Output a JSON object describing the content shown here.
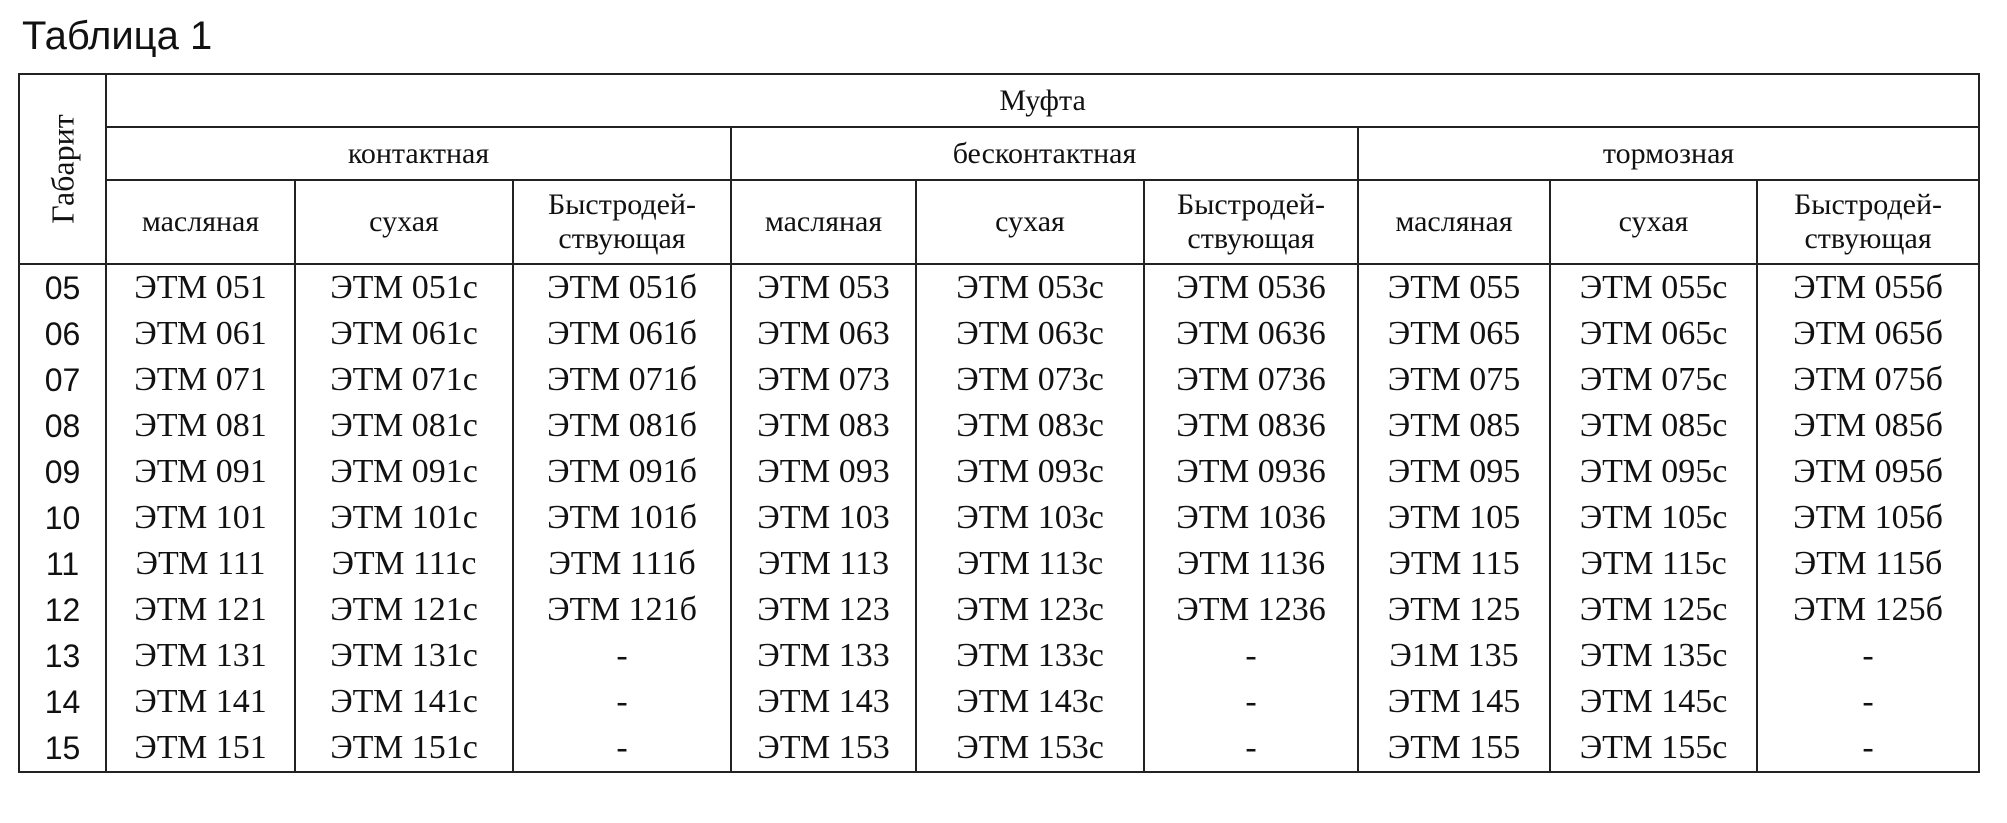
{
  "title": "Таблица 1",
  "table": {
    "row_header": "Габарит",
    "top_header": "Муфта",
    "groups": [
      "контактная",
      "бесконтактная",
      "тормозная"
    ],
    "subheaders": [
      "масляная",
      "сухая",
      "Быстродей-ствующая",
      "масляная",
      "сухая",
      "Быстродей-ствующая",
      "масляная",
      "сухая",
      "Быстродей-ствующая"
    ],
    "rows": [
      {
        "gabarit": "05",
        "cells": [
          "ЭТМ 051",
          "ЭТМ 051с",
          "ЭТМ 051б",
          "ЭТМ 053",
          "ЭТМ 053с",
          "ЭТМ 0536",
          "ЭТМ 055",
          "ЭТМ 055с",
          "ЭТМ 055б"
        ]
      },
      {
        "gabarit": "06",
        "cells": [
          "ЭТМ 061",
          "ЭТМ 061с",
          "ЭТМ 061б",
          "ЭТМ 063",
          "ЭТМ 063с",
          "ЭТМ 0636",
          "ЭТМ 065",
          "ЭТМ 065с",
          "ЭТМ 065б"
        ]
      },
      {
        "gabarit": "07",
        "cells": [
          "ЭТМ 071",
          "ЭТМ 071с",
          "ЭТМ 071б",
          "ЭТМ 073",
          "ЭТМ 073с",
          "ЭТМ 0736",
          "ЭТМ 075",
          "ЭТМ 075с",
          "ЭТМ 075б"
        ]
      },
      {
        "gabarit": "08",
        "cells": [
          "ЭТМ 081",
          "ЭТМ 081с",
          "ЭТМ 081б",
          "ЭТМ 083",
          "ЭТМ 083с",
          "ЭТМ 0836",
          "ЭТМ 085",
          "ЭТМ 085с",
          "ЭТМ 085б"
        ]
      },
      {
        "gabarit": "09",
        "cells": [
          "ЭТМ 091",
          "ЭТМ 091с",
          "ЭТМ 091б",
          "ЭТМ 093",
          "ЭТМ 093с",
          "ЭТМ 0936",
          "ЭТМ 095",
          "ЭТМ 095с",
          "ЭТМ 095б"
        ]
      },
      {
        "gabarit": "10",
        "cells": [
          "ЭТМ 101",
          "ЭТМ 101с",
          "ЭТМ 101б",
          "ЭТМ 103",
          "ЭТМ 103с",
          "ЭТМ 1036",
          "ЭТМ 105",
          "ЭТМ 105с",
          "ЭТМ 105б"
        ]
      },
      {
        "gabarit": "11",
        "cells": [
          "ЭТМ 111",
          "ЭТМ 111с",
          "ЭТМ 111б",
          "ЭТМ 113",
          "ЭТМ 113с",
          "ЭТМ 1136",
          "ЭТМ 115",
          "ЭТМ 115с",
          "ЭТМ 115б"
        ]
      },
      {
        "gabarit": "12",
        "cells": [
          "ЭТМ 121",
          "ЭТМ 121с",
          "ЭТМ 121б",
          "ЭТМ 123",
          "ЭТМ 123с",
          "ЭТМ 1236",
          "ЭТМ 125",
          "ЭТМ 125с",
          "ЭТМ 125б"
        ]
      },
      {
        "gabarit": "13",
        "cells": [
          "ЭТМ 131",
          "ЭТМ 131с",
          "-",
          "ЭТМ 133",
          "ЭТМ 133с",
          "-",
          "Э1М 135",
          "ЭТМ 135с",
          "-"
        ]
      },
      {
        "gabarit": "14",
        "cells": [
          "ЭТМ 141",
          "ЭТМ 141с",
          "-",
          "ЭТМ 143",
          "ЭТМ 143с",
          "-",
          "ЭТМ 145",
          "ЭТМ 145с",
          "-"
        ]
      },
      {
        "gabarit": "15",
        "cells": [
          "ЭТМ 151",
          "ЭТМ 151с",
          "-",
          "ЭТМ 153",
          "ЭТМ 153с",
          "-",
          "ЭТМ 155",
          "ЭТМ 155с",
          "-"
        ]
      }
    ]
  }
}
